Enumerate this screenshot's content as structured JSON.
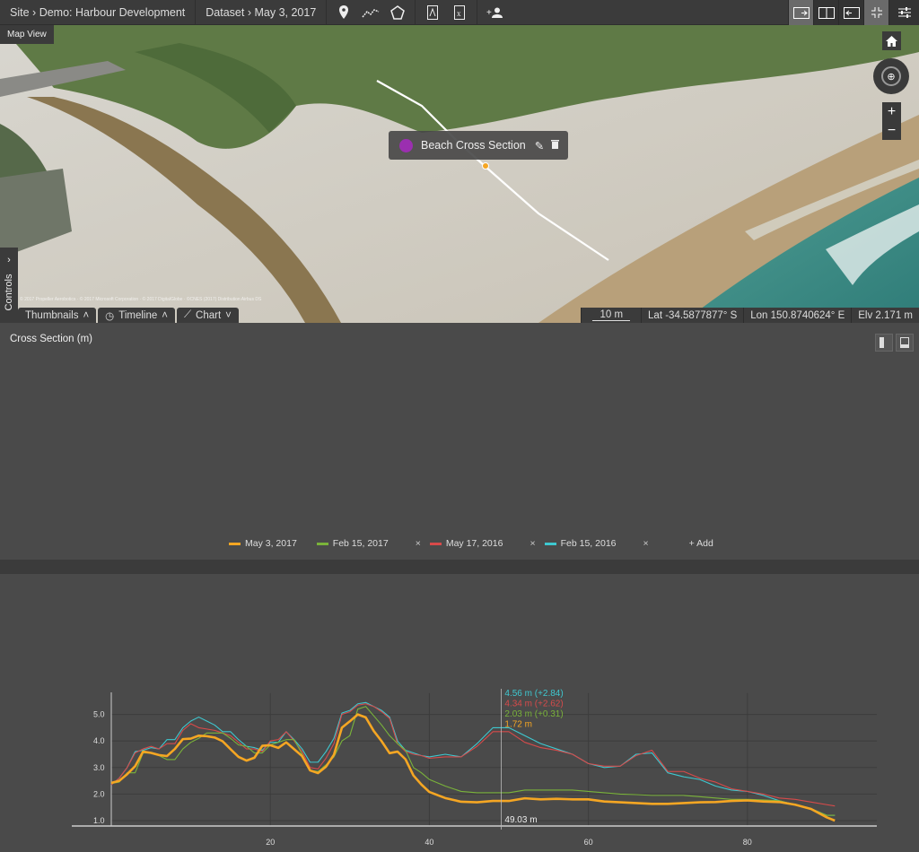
{
  "topbar": {
    "site": "Site",
    "site_name": "Demo: Harbour Development",
    "dataset": "Dataset",
    "dataset_date": "May 3, 2017",
    "sep": "›",
    "icons": [
      "map-marker-icon",
      "polyline-icon",
      "polygon-icon",
      "pdf-icon",
      "excel-icon",
      "add-user-icon"
    ]
  },
  "rightbar": {
    "icons": [
      "layout-map-right-icon",
      "layout-split-icon",
      "layout-map-left-icon",
      "collapse-icon",
      "settings-sliders-icon"
    ]
  },
  "map": {
    "label": "Map View",
    "popup": {
      "title": "Beach Cross Section",
      "color": "#9b2fb0"
    },
    "attribution": "© 2017 Propeller Aerobotics · © 2017 Microsoft Corporation · © 2017 DigitalGlobe · ©CNES (2017) Distribution Airbus DS",
    "zoom_in": "+",
    "zoom_out": "−",
    "controls": "Controls",
    "tabs": [
      {
        "label": "Thumbnails"
      },
      {
        "label": "Timeline"
      },
      {
        "label": "Chart"
      }
    ],
    "scale": "10 m",
    "lat": "Lat -34.5877877° S",
    "lon": "Lon 150.8740624° E",
    "elv": "Elv 2.171 m"
  },
  "panel": {
    "title": "Cross Section (m)",
    "cursor_x_label": "49.03 m",
    "readouts": [
      {
        "text": "4.56 m (+2.84)",
        "color": "#3ec8d0"
      },
      {
        "text": "4.34 m (+2.62)",
        "color": "#d84a4a"
      },
      {
        "text": "2.03 m (+0.31)",
        "color": "#7ab33a"
      },
      {
        "text": "1.72 m",
        "color": "#f5a623"
      }
    ],
    "legend": [
      {
        "label": "May 3, 2017",
        "color": "#f5a623",
        "removable": false
      },
      {
        "label": "Feb 15, 2017",
        "color": "#7ab33a",
        "removable": true
      },
      {
        "label": "May 17, 2016",
        "color": "#d84a4a",
        "removable": true
      },
      {
        "label": "Feb 15, 2016",
        "color": "#3ec8d0",
        "removable": true
      }
    ],
    "remove": "×",
    "add": "+ Add"
  },
  "chart_data": {
    "type": "line",
    "title": "Cross Section (m)",
    "xlabel": "",
    "ylabel": "",
    "xlim": [
      0,
      96
    ],
    "ylim": [
      0.8,
      5.8
    ],
    "xticks": [
      20,
      40,
      60,
      80
    ],
    "yticks": [
      "1.0",
      "2.0",
      "3.0",
      "4.0",
      "5.0"
    ],
    "grid": true,
    "legend_position": "bottom",
    "cursor_x": 49.03,
    "x": [
      0,
      1,
      2,
      3,
      4,
      5,
      6,
      7,
      8,
      9,
      10,
      11,
      12,
      13,
      14,
      15,
      16,
      17,
      18,
      19,
      20,
      21,
      22,
      23,
      24,
      25,
      26,
      27,
      28,
      29,
      30,
      31,
      32,
      33,
      34,
      35,
      36,
      37,
      38,
      39,
      40,
      42,
      44,
      46,
      48,
      50,
      52,
      54,
      56,
      58,
      60,
      62,
      64,
      66,
      68,
      70,
      72,
      74,
      76,
      78,
      80,
      82,
      84,
      86,
      88,
      90,
      91
    ],
    "series": [
      {
        "name": "May 3, 2017",
        "color": "#f5a623",
        "values": [
          2.42,
          2.5,
          2.75,
          3.05,
          3.6,
          3.55,
          3.47,
          3.43,
          3.7,
          4.07,
          4.09,
          4.2,
          4.18,
          4.13,
          3.99,
          3.69,
          3.4,
          3.26,
          3.37,
          3.82,
          3.84,
          3.74,
          3.95,
          3.69,
          3.43,
          2.89,
          2.79,
          3.03,
          3.48,
          4.5,
          4.74,
          5.0,
          4.89,
          4.38,
          3.99,
          3.54,
          3.6,
          3.31,
          2.7,
          2.36,
          2.08,
          1.85,
          1.71,
          1.69,
          1.74,
          1.74,
          1.84,
          1.8,
          1.82,
          1.8,
          1.8,
          1.72,
          1.69,
          1.66,
          1.63,
          1.63,
          1.66,
          1.69,
          1.7,
          1.74,
          1.76,
          1.72,
          1.7,
          1.6,
          1.44,
          1.12,
          1.0
        ]
      },
      {
        "name": "Feb 15, 2017",
        "color": "#7ab33a",
        "values": [
          2.4,
          2.45,
          2.8,
          2.8,
          3.55,
          3.55,
          3.45,
          3.3,
          3.3,
          3.7,
          3.95,
          4.1,
          4.3,
          4.3,
          4.3,
          4.1,
          3.85,
          3.8,
          3.55,
          3.55,
          3.85,
          3.95,
          4.05,
          4.05,
          3.5,
          2.9,
          2.85,
          3.1,
          3.4,
          4.0,
          4.2,
          5.2,
          5.3,
          4.95,
          4.6,
          4.2,
          3.9,
          3.65,
          3.0,
          2.8,
          2.55,
          2.3,
          2.1,
          2.05,
          2.05,
          2.05,
          2.15,
          2.15,
          2.15,
          2.15,
          2.1,
          2.05,
          2.0,
          1.98,
          1.95,
          1.95,
          1.95,
          1.9,
          1.85,
          1.8,
          1.8,
          1.78,
          1.75,
          1.6,
          1.45,
          1.2,
          1.2
        ]
      },
      {
        "name": "May 17, 2016",
        "color": "#d84a4a",
        "values": [
          2.35,
          2.6,
          3.0,
          3.55,
          3.7,
          3.8,
          3.7,
          3.9,
          3.9,
          4.4,
          4.65,
          4.5,
          4.45,
          4.4,
          4.3,
          4.2,
          3.95,
          3.7,
          3.7,
          3.6,
          4.0,
          4.05,
          4.35,
          4.0,
          3.6,
          3.0,
          2.95,
          3.35,
          3.9,
          5.0,
          5.1,
          5.35,
          5.4,
          5.3,
          5.1,
          4.85,
          3.9,
          3.6,
          3.5,
          3.45,
          3.35,
          3.4,
          3.4,
          3.8,
          4.35,
          4.35,
          3.95,
          3.75,
          3.65,
          3.5,
          3.15,
          3.05,
          3.05,
          3.45,
          3.65,
          2.85,
          2.85,
          2.6,
          2.45,
          2.2,
          2.1,
          2.0,
          1.85,
          1.8,
          1.7,
          1.6,
          1.55
        ]
      },
      {
        "name": "Feb 15, 2016",
        "color": "#3ec8d0",
        "values": [
          2.35,
          2.6,
          3.0,
          3.6,
          3.65,
          3.75,
          3.7,
          4.05,
          4.05,
          4.5,
          4.75,
          4.9,
          4.75,
          4.6,
          4.35,
          4.35,
          4.05,
          3.8,
          3.75,
          3.65,
          3.95,
          3.95,
          4.35,
          4.05,
          3.7,
          3.2,
          3.2,
          3.6,
          4.1,
          5.05,
          5.15,
          5.4,
          5.45,
          5.3,
          5.15,
          4.9,
          4.0,
          3.65,
          3.55,
          3.45,
          3.4,
          3.5,
          3.4,
          3.9,
          4.5,
          4.5,
          4.2,
          3.9,
          3.7,
          3.5,
          3.15,
          3.0,
          3.05,
          3.5,
          3.55,
          2.8,
          2.65,
          2.55,
          2.3,
          2.15,
          2.1,
          1.95,
          1.75,
          1.6,
          1.45,
          1.2,
          1.2
        ]
      }
    ]
  }
}
